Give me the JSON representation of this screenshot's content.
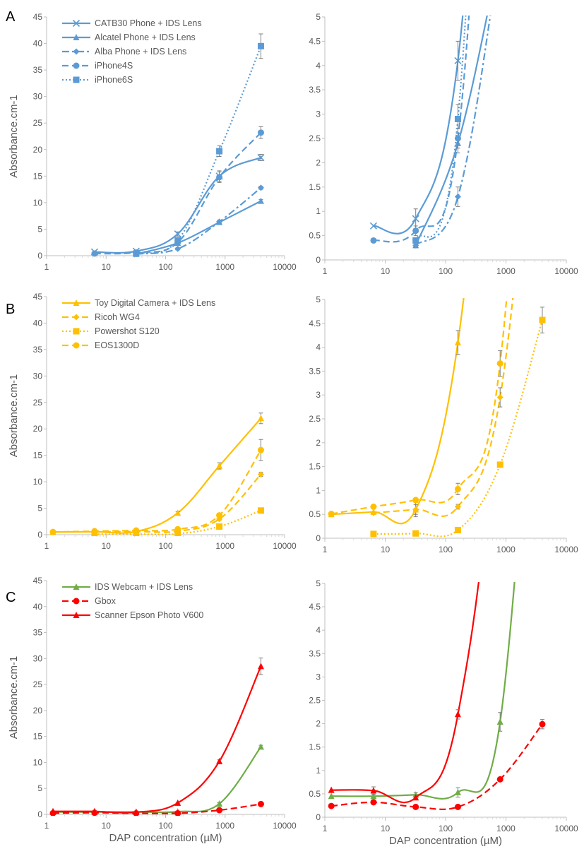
{
  "chart_data": [
    {
      "panel": "A",
      "type": "line",
      "xscale": "log",
      "xlim": [
        1,
        10000
      ],
      "ylim": [
        0,
        45
      ],
      "yticks": [
        0,
        5,
        10,
        15,
        20,
        25,
        30,
        35,
        40,
        45
      ],
      "xticks": [
        "1",
        "10",
        "100",
        "1000",
        "10000"
      ],
      "ylabel": "Absorbance.cm-1",
      "xlabel": "",
      "legend": true,
      "legend_position": "top-left",
      "series": [
        {
          "name": "CATB30 Phone + IDS Lens",
          "color": "#5B9BD5",
          "marker": "x",
          "dash": "solid",
          "x": [
            6.4,
            32,
            160,
            800,
            4000
          ],
          "y": [
            0.7,
            0.85,
            4.1,
            15.0,
            18.5
          ],
          "err": [
            0,
            0.2,
            0.4,
            1.0,
            0.6
          ]
        },
        {
          "name": "Alcatel Phone + IDS Lens",
          "color": "#5B9BD5",
          "marker": "triangle",
          "dash": "solid",
          "x": [
            32,
            160,
            800,
            4000
          ],
          "y": [
            0.3,
            2.4,
            6.3,
            10.3
          ],
          "err": [
            0.05,
            0.2,
            0.3,
            0.3
          ]
        },
        {
          "name": "Alba Phone + IDS Lens",
          "color": "#5B9BD5",
          "marker": "diamond",
          "dash": "dashdot",
          "x": [
            32,
            160,
            800,
            4000
          ],
          "y": [
            0.3,
            1.3,
            6.4,
            12.8
          ],
          "err": [
            0.05,
            0.2,
            0.3,
            0.3
          ]
        },
        {
          "name": "iPhone4S",
          "color": "#5B9BD5",
          "marker": "circle",
          "dash": "dashed",
          "x": [
            6.4,
            32,
            160,
            800,
            4000
          ],
          "y": [
            0.4,
            0.6,
            2.5,
            14.8,
            23.2
          ],
          "err": [
            0,
            0.1,
            0.2,
            1.0,
            1.1
          ]
        },
        {
          "name": "iPhone6S",
          "color": "#5B9BD5",
          "marker": "square",
          "dash": "dotted",
          "x": [
            32,
            160,
            800,
            4000
          ],
          "y": [
            0.4,
            2.9,
            19.7,
            39.5
          ],
          "err": [
            0.05,
            0.3,
            1.0,
            2.3
          ]
        }
      ]
    },
    {
      "panel": "A",
      "type": "line",
      "xscale": "log",
      "xlim": [
        1,
        10000
      ],
      "ylim": [
        0,
        5
      ],
      "yticks": [
        0,
        0.5,
        1,
        1.5,
        2,
        2.5,
        3,
        3.5,
        4,
        4.5,
        5
      ],
      "xticks": [
        "1",
        "10",
        "100",
        "1000",
        "10000"
      ],
      "ylabel": "",
      "xlabel": "",
      "legend": false,
      "series_ref": 0
    },
    {
      "panel": "B",
      "type": "line",
      "xscale": "log",
      "xlim": [
        1,
        10000
      ],
      "ylim": [
        0,
        45
      ],
      "yticks": [
        0,
        5,
        10,
        15,
        20,
        25,
        30,
        35,
        40,
        45
      ],
      "xticks": [
        "1",
        "10",
        "100",
        "1000",
        "10000"
      ],
      "ylabel": "Absorbance.cm-1",
      "xlabel": "",
      "legend": true,
      "legend_position": "top-left",
      "series": [
        {
          "name": "Toy Digital Camera + IDS Lens",
          "color": "#FFC000",
          "marker": "triangle",
          "dash": "solid",
          "x": [
            1.28,
            6.4,
            32,
            160,
            800,
            4000
          ],
          "y": [
            0.5,
            0.55,
            0.6,
            4.1,
            13.0,
            22.0
          ],
          "err": [
            0,
            0,
            0.15,
            0.25,
            0.6,
            1.0
          ]
        },
        {
          "name": "Ricoh WG4",
          "color": "#FFC000",
          "marker": "diamond",
          "dash": "dashed",
          "x": [
            6.4,
            32,
            160,
            800,
            4000
          ],
          "y": [
            0.53,
            0.6,
            0.66,
            2.95,
            11.4
          ],
          "err": [
            0,
            0.1,
            0.05,
            0.2,
            0.4
          ]
        },
        {
          "name": "Powershot S120",
          "color": "#FFC000",
          "marker": "square",
          "dash": "dotted",
          "x": [
            6.4,
            32,
            160,
            800,
            4000
          ],
          "y": [
            0.09,
            0.1,
            0.17,
            1.54,
            4.57
          ],
          "err": [
            0,
            0,
            0,
            0.05,
            0.27
          ]
        },
        {
          "name": "EOS1300D",
          "color": "#FFC000",
          "marker": "circle",
          "dash": "dashed",
          "x": [
            1.28,
            6.4,
            32,
            160,
            800,
            4000
          ],
          "y": [
            0.51,
            0.66,
            0.8,
            1.03,
            3.66,
            16.0
          ],
          "err": [
            0,
            0,
            0,
            0.12,
            0.27,
            2.0
          ]
        }
      ]
    },
    {
      "panel": "B",
      "type": "line",
      "xscale": "log",
      "xlim": [
        1,
        10000
      ],
      "ylim": [
        0,
        5
      ],
      "yticks": [
        0,
        0.5,
        1,
        1.5,
        2,
        2.5,
        3,
        3.5,
        4,
        4.5,
        5
      ],
      "xticks": [
        "1",
        "10",
        "100",
        "1000",
        "10000"
      ],
      "ylabel": "",
      "xlabel": "",
      "legend": false,
      "series_ref": 2
    },
    {
      "panel": "C",
      "type": "line",
      "xscale": "log",
      "xlim": [
        1,
        10000
      ],
      "ylim": [
        0,
        45
      ],
      "yticks": [
        0,
        5,
        10,
        15,
        20,
        25,
        30,
        35,
        40,
        45
      ],
      "xticks": [
        "1",
        "10",
        "100",
        "1000",
        "10000"
      ],
      "ylabel": "Absorbance.cm-1",
      "xlabel": "DAP concentration (µM)",
      "legend": true,
      "legend_position": "top-left",
      "series": [
        {
          "name": "IDS Webcam + IDS Lens",
          "color": "#70AD47",
          "marker": "triangle",
          "dash": "solid",
          "x": [
            1.28,
            6.4,
            32,
            160,
            800,
            4000
          ],
          "y": [
            0.45,
            0.45,
            0.48,
            0.53,
            2.04,
            13.0
          ],
          "err": [
            0,
            0.05,
            0.05,
            0.1,
            0.2,
            0.3
          ]
        },
        {
          "name": "Gbox",
          "color": "#FF0000",
          "marker": "circle",
          "dash": "dashed",
          "x": [
            1.28,
            6.4,
            32,
            160,
            800,
            4000
          ],
          "y": [
            0.24,
            0.32,
            0.22,
            0.22,
            0.81,
            1.99
          ],
          "err": [
            0,
            0,
            0,
            0,
            0.04,
            0.1
          ]
        },
        {
          "name": "Scanner Epson Photo V600",
          "color": "#FF0000",
          "marker": "triangle",
          "dash": "solid",
          "x": [
            1.28,
            6.4,
            32,
            160,
            800,
            4000
          ],
          "y": [
            0.58,
            0.57,
            0.42,
            2.2,
            10.2,
            28.5
          ],
          "err": [
            0,
            0.08,
            0.05,
            0.1,
            0.3,
            1.6
          ]
        }
      ]
    },
    {
      "panel": "C",
      "type": "line",
      "xscale": "log",
      "xlim": [
        1,
        10000
      ],
      "ylim": [
        0,
        5
      ],
      "yticks": [
        0,
        0.5,
        1,
        1.5,
        2,
        2.5,
        3,
        3.5,
        4,
        4.5,
        5
      ],
      "xticks": [
        "1",
        "10",
        "100",
        "1000",
        "10000"
      ],
      "ylabel": "",
      "xlabel": "DAP concentration (µM)",
      "legend": false,
      "series_ref": 4
    }
  ]
}
